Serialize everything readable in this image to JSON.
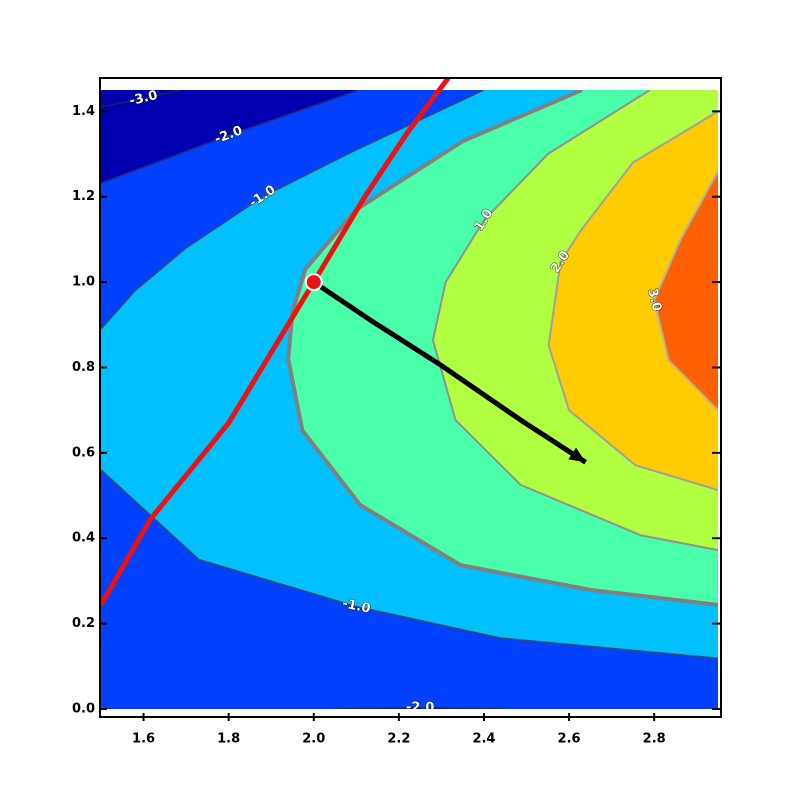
{
  "chart_data": {
    "type": "contour",
    "xlim": [
      1.5,
      2.95
    ],
    "ylim": [
      0,
      1.45
    ],
    "xticks": [
      1.6,
      1.8,
      {
        "value": 2,
        "label": "2.0"
      },
      2.2,
      2.4,
      2.6,
      2.8
    ],
    "yticks": [
      {
        "value": 0,
        "label": "0.0"
      },
      0.2,
      0.4,
      0.6,
      0.8,
      {
        "value": 1,
        "label": "1.0"
      },
      1.2,
      1.4
    ],
    "background": "#0000b0",
    "levels": [
      {
        "value": -3,
        "color": "#0000b0",
        "line_color": "#20205a",
        "linewidth": 1.5
      },
      {
        "value": -2,
        "color": "#0040ff",
        "line_color": "#202a70",
        "linewidth": 1.5
      },
      {
        "value": -1,
        "color": "#00c0ff",
        "line_color": "#3a4a6a",
        "linewidth": 1.5
      },
      {
        "value": 0,
        "color": "#4affaa",
        "line_color": "#808080",
        "linewidth": 4
      },
      {
        "value": 1,
        "color": "#b0ff40",
        "line_color": "#909090",
        "linewidth": 2
      },
      {
        "value": 2,
        "color": "#ffcc00",
        "line_color": "#a0a0a0",
        "linewidth": 2
      },
      {
        "value": 3,
        "color": "#ff6000",
        "line_color": "#b0b0b0",
        "linewidth": 2
      }
    ],
    "contours": [
      {
        "level": -3,
        "x": [
          1.5,
          1.6,
          1.686
        ],
        "y": [
          1.41,
          1.43,
          1.45
        ]
      },
      {
        "level": -2,
        "x": [
          1.5,
          1.8,
          2.105
        ],
        "y": [
          1.232,
          1.344,
          1.45
        ]
      },
      {
        "level": -2,
        "x": [
          2.45,
          2.25,
          2.05
        ],
        "y": [
          0,
          0.003,
          0
        ]
      },
      {
        "level": -1,
        "x": [
          1.5,
          1.58,
          1.7,
          1.88,
          2.1,
          2.4
        ],
        "y": [
          0.89,
          0.98,
          1.08,
          1.2,
          1.31,
          1.45
        ]
      },
      {
        "level": -1,
        "x": [
          2.95,
          2.44,
          2.1,
          1.73,
          1.5
        ],
        "y": [
          0.119,
          0.166,
          0.24,
          0.35,
          0.56
        ]
      },
      {
        "level": 0,
        "x": [
          2.95,
          2.65,
          2.345,
          2.109,
          1.973,
          1.94,
          1.95,
          1.98,
          2.1,
          2.35,
          2.63
        ],
        "y": [
          0.244,
          0.279,
          0.337,
          0.478,
          0.653,
          0.82,
          0.93,
          1.03,
          1.17,
          1.33,
          1.45
        ]
      },
      {
        "level": 1,
        "x": [
          2.95,
          2.768,
          2.486,
          2.333,
          2.28,
          2.31,
          2.4,
          2.55,
          2.79
        ],
        "y": [
          0.372,
          0.407,
          0.525,
          0.677,
          0.864,
          1.0,
          1.145,
          1.3,
          1.45
        ]
      },
      {
        "level": 2,
        "x": [
          2.95,
          2.756,
          2.6,
          2.552,
          2.58,
          2.627,
          2.75,
          2.95
        ],
        "y": [
          0.513,
          0.571,
          0.7,
          0.852,
          1.047,
          1.12,
          1.28,
          1.4
        ]
      },
      {
        "level": 3,
        "x": [
          2.95,
          2.834,
          2.8,
          2.862,
          2.95
        ],
        "y": [
          0.7,
          0.817,
          0.958,
          1.1,
          1.26
        ]
      }
    ],
    "contour_labels": [
      {
        "level": -3,
        "text": "-3.0",
        "x": 1.6,
        "y": 1.43
      },
      {
        "level": -2,
        "text": "-2.0",
        "x": 1.8,
        "y": 1.344
      },
      {
        "level": -1,
        "text": "-1.0",
        "x": 1.88,
        "y": 1.2
      },
      {
        "level": -1,
        "text": "-1.0",
        "x": 2.1,
        "y": 0.24
      },
      {
        "level": -2,
        "text": "-2.0",
        "x": 2.25,
        "y": 0.003
      },
      {
        "level": 1,
        "text": "1.0",
        "x": 2.4,
        "y": 1.145
      },
      {
        "level": 2,
        "text": "2.0",
        "x": 2.58,
        "y": 1.047
      },
      {
        "level": 3,
        "text": "3.0",
        "x": 2.8,
        "y": 0.958
      }
    ],
    "constraint": {
      "color": "#ee1111",
      "x": [
        1.5,
        1.615,
        1.8,
        2.0,
        2.12,
        2.22,
        2.316
      ],
      "y": [
        0.244,
        0.443,
        0.67,
        1.0,
        1.2,
        1.35,
        1.478
      ]
    },
    "arrow": {
      "color": "#000000",
      "x": [
        2.0,
        2.133,
        2.298,
        2.486,
        2.639
      ],
      "y": [
        1.0,
        0.911,
        0.806,
        0.677,
        0.578
      ]
    },
    "point": {
      "color": "#ee1111",
      "x": 2.0,
      "y": 1.0
    }
  }
}
